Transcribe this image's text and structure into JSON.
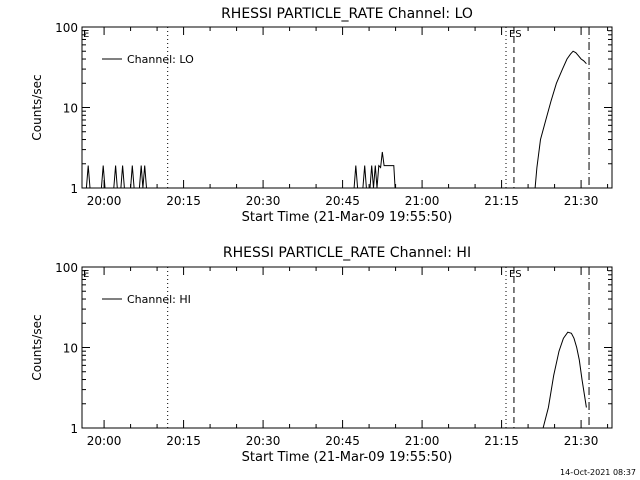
{
  "chart_data": [
    {
      "type": "line",
      "title": "RHESSI PARTICLE_RATE Channel: LO",
      "xlabel": "Start Time (21-Mar-09 19:55:50)",
      "ylabel": "Counts/sec",
      "yscale": "log",
      "ylim": [
        1,
        100
      ],
      "xlim": [
        "19:55:50",
        "21:35:50"
      ],
      "x_ticks": [
        "20:00",
        "20:15",
        "20:30",
        "20:45",
        "21:00",
        "21:15",
        "21:30"
      ],
      "y_ticks": [
        "1",
        "10",
        "100"
      ],
      "legend": {
        "position": "top-left",
        "entries": [
          "Channel: LO"
        ]
      },
      "series": [
        {
          "name": "Channel: LO",
          "x": [
            "19:55:50",
            "19:56:40",
            "19:57:00",
            "19:57:20",
            "19:58:10",
            "19:59:30",
            "19:59:50",
            "20:00:10",
            "20:01:50",
            "20:02:10",
            "20:02:30",
            "20:03:10",
            "20:03:30",
            "20:03:50",
            "20:05:00",
            "20:05:20",
            "20:05:40",
            "20:06:40",
            "20:07:00",
            "20:07:20",
            "20:07:40",
            "20:08:00",
            "20:08:20",
            "20:12:00",
            "20:47:10",
            "20:47:30",
            "20:47:50",
            "20:48:50",
            "20:49:10",
            "20:49:30",
            "20:50:10",
            "20:50:30",
            "20:50:50",
            "20:51:10",
            "20:51:30",
            "20:51:50",
            "20:52:10",
            "20:52:30",
            "20:52:50",
            "20:53:10",
            "20:53:30",
            "20:53:50",
            "20:54:30",
            "20:54:40",
            "20:54:55",
            "21:13:00",
            "21:21:20",
            "21:21:40",
            "21:22:20",
            "21:23:20",
            "21:24:20",
            "21:25:20",
            "21:26:30",
            "21:27:20",
            "21:28:00",
            "21:28:30",
            "21:29:00",
            "21:29:30",
            "21:30:00",
            "21:30:30",
            "21:31:00"
          ],
          "y": [
            1,
            1,
            1.9,
            1,
            1,
            1,
            1.9,
            1,
            1,
            1.9,
            1,
            1,
            1.9,
            1,
            1,
            1.9,
            1,
            1,
            1.9,
            1,
            1.9,
            1,
            1,
            1,
            1,
            1.9,
            1,
            1,
            1.9,
            1,
            1,
            1.9,
            1,
            1.9,
            1,
            1.9,
            1.8,
            2.8,
            1.9,
            1.9,
            1.9,
            1.9,
            1.9,
            1.9,
            1,
            1,
            1,
            1.8,
            4,
            7,
            12,
            20,
            30,
            40,
            46,
            50,
            48,
            44,
            40,
            38,
            35
          ]
        }
      ],
      "annotations": [
        {
          "label": "E",
          "x": "19:55:50",
          "style": "none"
        },
        {
          "label": "",
          "x": "20:12:00",
          "style": "dotted"
        },
        {
          "label": "",
          "x": "21:15:50",
          "style": "dotted"
        },
        {
          "label": "ES",
          "x": "21:17:20",
          "style": "dashed"
        },
        {
          "label": "",
          "x": "21:31:30",
          "style": "dash-dot"
        }
      ],
      "grid": false
    },
    {
      "type": "line",
      "title": "RHESSI PARTICLE_RATE Channel: HI",
      "xlabel": "Start Time (21-Mar-09 19:55:50)",
      "ylabel": "Counts/sec",
      "yscale": "log",
      "ylim": [
        1,
        100
      ],
      "xlim": [
        "19:55:50",
        "21:35:50"
      ],
      "x_ticks": [
        "20:00",
        "20:15",
        "20:30",
        "20:45",
        "21:00",
        "21:15",
        "21:30"
      ],
      "y_ticks": [
        "1",
        "10",
        "100"
      ],
      "legend": {
        "position": "top-left",
        "entries": [
          "Channel: HI"
        ]
      },
      "series": [
        {
          "name": "Channel: HI",
          "x": [
            "21:22:50",
            "21:23:50",
            "21:24:50",
            "21:25:50",
            "21:26:40",
            "21:27:30",
            "21:28:10",
            "21:28:40",
            "21:29:10",
            "21:29:40",
            "21:30:10",
            "21:30:40",
            "21:31:00"
          ],
          "y": [
            1,
            1.8,
            4.5,
            9,
            13,
            15.5,
            15,
            13,
            10,
            7,
            4,
            2.5,
            1.8
          ]
        }
      ],
      "annotations": [
        {
          "label": "E",
          "x": "19:55:50",
          "style": "none"
        },
        {
          "label": "",
          "x": "20:12:00",
          "style": "dotted"
        },
        {
          "label": "",
          "x": "21:15:50",
          "style": "dotted"
        },
        {
          "label": "ES",
          "x": "21:17:20",
          "style": "dashed"
        },
        {
          "label": "",
          "x": "21:31:30",
          "style": "dash-dot"
        }
      ],
      "grid": false
    }
  ],
  "footer": {
    "timestamp": "14-Oct-2021 08:37"
  }
}
